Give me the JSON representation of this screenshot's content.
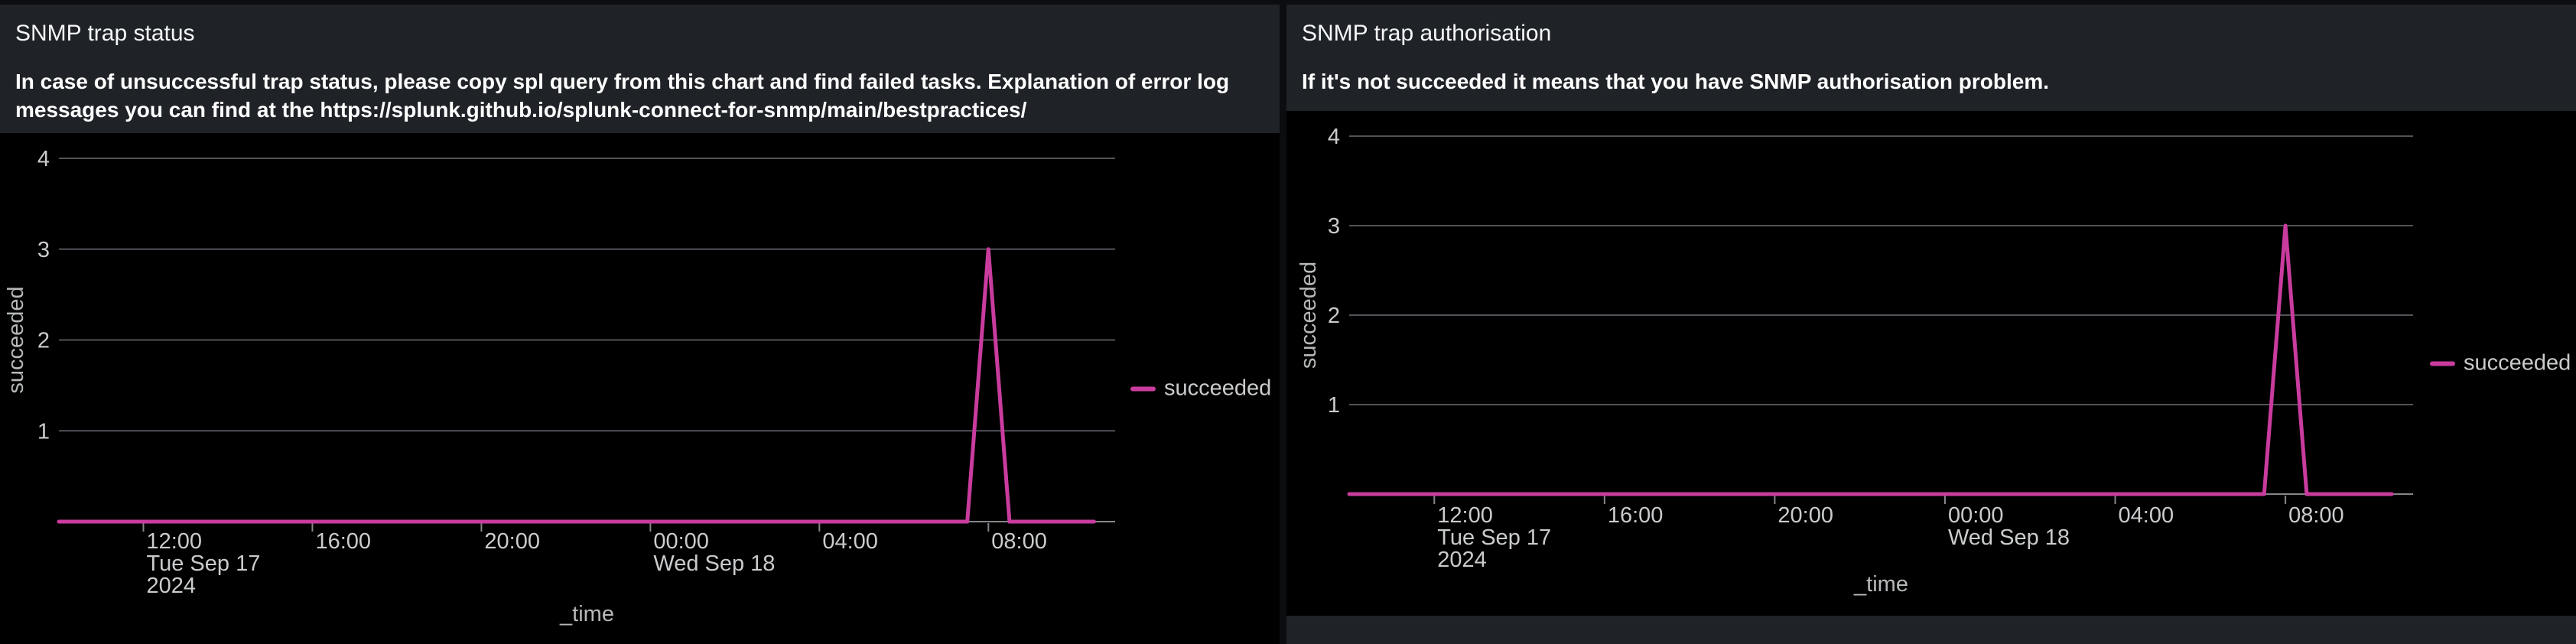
{
  "panels": [
    {
      "title": "SNMP trap status",
      "description": "In case of unsuccessful trap status, please copy spl query from this chart and find failed tasks. Explanation of error log\nmessages you can find at the https://splunk.github.io/splunk-connect-for-snmp/main/bestpractices/",
      "chart_data": {
        "type": "line",
        "title": "SNMP trap status",
        "xlabel": "_time",
        "ylabel": "succeeded",
        "x_unit": "hours since Tue Sep 17 2024 10:00",
        "x_range_hours": [
          0,
          25
        ],
        "ylim": [
          0,
          4.28
        ],
        "y_ticks": [
          1,
          2,
          3,
          4
        ],
        "x_ticks": [
          {
            "hours": 2,
            "lines": [
              "12:00",
              "Tue Sep 17",
              "2024"
            ]
          },
          {
            "hours": 6,
            "lines": [
              "16:00"
            ]
          },
          {
            "hours": 10,
            "lines": [
              "20:00"
            ]
          },
          {
            "hours": 14,
            "lines": [
              "00:00",
              "Wed Sep 18"
            ]
          },
          {
            "hours": 18,
            "lines": [
              "04:00"
            ]
          },
          {
            "hours": 22,
            "lines": [
              "08:00"
            ]
          }
        ],
        "grid": "horizontal",
        "legend_position": "right",
        "colors": {
          "line": "#c93c9e",
          "gridline": "#515358",
          "axis": "#85878b",
          "tick_text": "#c9cbcd",
          "axis_title_text": "#b6b8ba",
          "plot_bg": "#000000"
        },
        "series": [
          {
            "name": "succeeded",
            "color": "#c93c9e",
            "points": [
              {
                "time": "Tue Sep 17 2024 10:00",
                "hours": 0,
                "value": 0
              },
              {
                "time": "Wed Sep 18 2024 07:30",
                "hours": 21.5,
                "value": 0
              },
              {
                "time": "Wed Sep 18 2024 08:00",
                "hours": 22,
                "value": 3
              },
              {
                "time": "Wed Sep 18 2024 08:30",
                "hours": 22.5,
                "value": 0
              },
              {
                "time": "Wed Sep 18 2024 10:30",
                "hours": 24.5,
                "value": 0
              }
            ]
          }
        ]
      }
    },
    {
      "title": "SNMP trap authorisation",
      "description": "If it's not succeeded it means that you have SNMP authorisation problem.",
      "chart_data": {
        "type": "line",
        "title": "SNMP trap authorisation",
        "xlabel": "_time",
        "ylabel": "succeeded",
        "x_unit": "hours since Tue Sep 17 2024 10:00",
        "x_range_hours": [
          0,
          25
        ],
        "ylim": [
          0,
          4.28
        ],
        "y_ticks": [
          1,
          2,
          3,
          4
        ],
        "x_ticks": [
          {
            "hours": 2,
            "lines": [
              "12:00",
              "Tue Sep 17",
              "2024"
            ]
          },
          {
            "hours": 6,
            "lines": [
              "16:00"
            ]
          },
          {
            "hours": 10,
            "lines": [
              "20:00"
            ]
          },
          {
            "hours": 14,
            "lines": [
              "00:00",
              "Wed Sep 18"
            ]
          },
          {
            "hours": 18,
            "lines": [
              "04:00"
            ]
          },
          {
            "hours": 22,
            "lines": [
              "08:00"
            ]
          }
        ],
        "grid": "horizontal",
        "legend_position": "right",
        "colors": {
          "line": "#c93c9e",
          "gridline": "#515358",
          "axis": "#85878b",
          "tick_text": "#c9cbcd",
          "axis_title_text": "#b6b8ba",
          "plot_bg": "#000000"
        },
        "series": [
          {
            "name": "succeeded",
            "color": "#c93c9e",
            "points": [
              {
                "time": "Tue Sep 17 2024 10:00",
                "hours": 0,
                "value": 0
              },
              {
                "time": "Wed Sep 18 2024 07:30",
                "hours": 21.5,
                "value": 0
              },
              {
                "time": "Wed Sep 18 2024 08:00",
                "hours": 22,
                "value": 3
              },
              {
                "time": "Wed Sep 18 2024 08:30",
                "hours": 22.5,
                "value": 0
              },
              {
                "time": "Wed Sep 18 2024 10:30",
                "hours": 24.5,
                "value": 0
              }
            ]
          }
        ]
      }
    }
  ]
}
